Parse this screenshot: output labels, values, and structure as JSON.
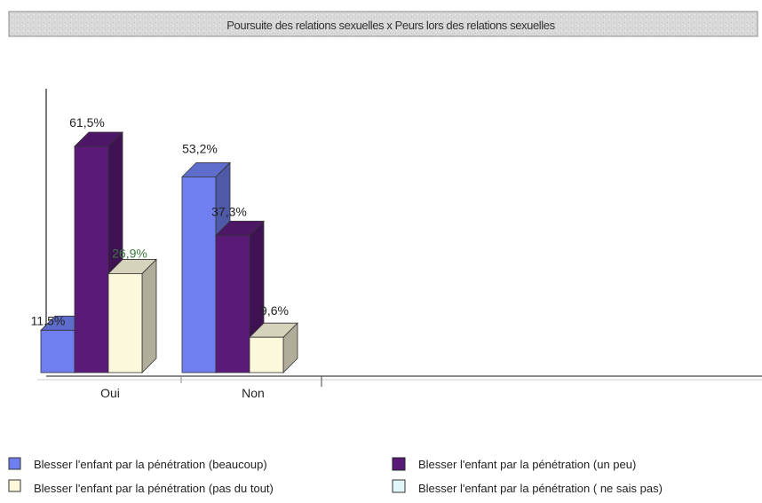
{
  "chart_data": {
    "type": "bar",
    "title": "Poursuite des relations sexuelles x Peurs lors des relations sexuelles",
    "categories": [
      "Oui",
      "Non"
    ],
    "series": [
      {
        "name": "Blesser l'enfant par la pénétration (beaucoup)",
        "values": [
          11.5,
          53.2
        ],
        "labels": [
          "11,5%",
          "53,2%"
        ],
        "color": "#6f7ff0"
      },
      {
        "name": "Blesser l'enfant par la pénétration (un peu)",
        "values": [
          61.5,
          37.3
        ],
        "labels": [
          "61,5%",
          "37,3%"
        ],
        "color": "#5a1a78"
      },
      {
        "name": "Blesser l'enfant par la pénétration (pas du tout)",
        "values": [
          26.9,
          9.6
        ],
        "labels": [
          "26,9%",
          "9,6%"
        ],
        "color": "#fbf8dc"
      },
      {
        "name": "Blesser l'enfant par la pénétration ( ne sais pas)",
        "values": [
          0,
          0
        ],
        "labels": [
          "",
          ""
        ],
        "color": "#e2f6fa"
      }
    ],
    "ylim": [
      0,
      70
    ],
    "grid": false,
    "legend_placement": "bottom"
  }
}
